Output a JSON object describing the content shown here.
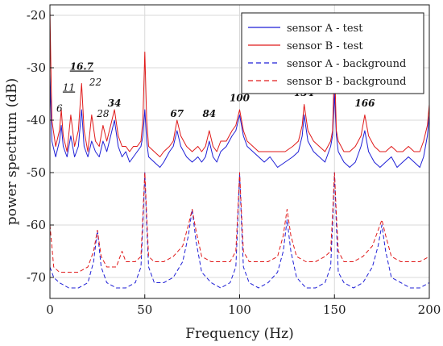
{
  "chart_data": {
    "type": "line",
    "title": "",
    "xlabel": "Frequency (Hz)",
    "ylabel": "power spectrum (dB)",
    "xlim": [
      0,
      200
    ],
    "ylim": [
      -74,
      -18
    ],
    "x_ticks": [
      0,
      50,
      100,
      150,
      200
    ],
    "y_ticks": [
      -70,
      -60,
      -50,
      -40,
      -30,
      -20
    ],
    "grid": true,
    "legend_position": "top-right",
    "series": [
      {
        "name": "sensor A - test",
        "color": "#1f1fd6",
        "dash": "solid",
        "x": [
          0,
          1,
          3,
          5,
          6,
          7,
          9,
          11,
          13,
          15,
          16.7,
          18,
          20,
          22,
          24,
          26,
          28,
          30,
          32,
          34,
          36,
          38,
          40,
          42,
          44,
          46,
          48,
          49,
          50,
          51,
          52,
          55,
          58,
          60,
          63,
          65,
          67,
          69,
          72,
          75,
          78,
          80,
          82,
          84,
          86,
          88,
          90,
          93,
          96,
          98,
          100,
          102,
          104,
          107,
          110,
          113,
          116,
          120,
          124,
          128,
          131,
          133,
          134,
          136,
          139,
          142,
          145,
          148,
          149,
          150,
          151,
          152,
          155,
          158,
          161,
          164,
          166,
          168,
          171,
          174,
          177,
          180,
          183,
          186,
          189,
          192,
          195,
          197,
          199,
          200
        ],
        "y": [
          -31,
          -44,
          -47,
          -44,
          -41,
          -45,
          -47,
          -43,
          -47,
          -45,
          -38,
          -45,
          -47,
          -44,
          -46,
          -47,
          -44,
          -46,
          -43,
          -40,
          -45,
          -47,
          -46,
          -48,
          -47,
          -46,
          -45,
          -43,
          -38,
          -44,
          -47,
          -48,
          -49,
          -48,
          -46,
          -45,
          -42,
          -45,
          -47,
          -48,
          -47,
          -48,
          -47,
          -44,
          -47,
          -48,
          -46,
          -45,
          -43,
          -42,
          -39,
          -43,
          -45,
          -46,
          -47,
          -48,
          -47,
          -49,
          -48,
          -47,
          -46,
          -43,
          -39,
          -44,
          -46,
          -47,
          -48,
          -45,
          -43,
          -35,
          -43,
          -46,
          -48,
          -49,
          -48,
          -45,
          -42,
          -46,
          -48,
          -49,
          -48,
          -47,
          -49,
          -48,
          -47,
          -48,
          -49,
          -47,
          -43,
          -39
        ]
      },
      {
        "name": "sensor B - test",
        "color": "#e01a1a",
        "dash": "solid",
        "x": [
          0,
          0.5,
          1,
          3,
          5,
          6,
          7,
          9,
          11,
          13,
          15,
          16.7,
          18,
          20,
          22,
          24,
          26,
          28,
          30,
          32,
          34,
          36,
          38,
          40,
          42,
          44,
          46,
          48,
          49,
          50,
          51,
          52,
          55,
          58,
          60,
          63,
          65,
          67,
          69,
          72,
          75,
          78,
          80,
          82,
          84,
          86,
          88,
          90,
          93,
          96,
          98,
          100,
          102,
          104,
          107,
          110,
          113,
          116,
          120,
          124,
          128,
          131,
          133,
          134,
          136,
          139,
          142,
          145,
          148,
          149,
          150,
          151,
          152,
          155,
          158,
          161,
          164,
          166,
          168,
          171,
          174,
          177,
          180,
          183,
          186,
          189,
          192,
          195,
          197,
          199,
          200
        ],
        "y": [
          -19,
          -30,
          -40,
          -45,
          -42,
          -38,
          -43,
          -46,
          -39,
          -45,
          -42,
          -33,
          -42,
          -46,
          -39,
          -44,
          -45,
          -41,
          -44,
          -41,
          -38,
          -43,
          -45,
          -45,
          -46,
          -45,
          -45,
          -44,
          -40,
          -27,
          -40,
          -45,
          -46,
          -47,
          -46,
          -45,
          -44,
          -40,
          -43,
          -45,
          -46,
          -45,
          -46,
          -45,
          -42,
          -45,
          -46,
          -44,
          -44,
          -42,
          -41,
          -38,
          -42,
          -44,
          -45,
          -46,
          -46,
          -46,
          -46,
          -46,
          -45,
          -44,
          -41,
          -37,
          -42,
          -44,
          -45,
          -46,
          -44,
          -42,
          -29,
          -42,
          -44,
          -46,
          -46,
          -45,
          -43,
          -39,
          -43,
          -45,
          -46,
          -46,
          -45,
          -46,
          -46,
          -45,
          -46,
          -46,
          -44,
          -41,
          -37
        ]
      },
      {
        "name": "sensor A - background",
        "color": "#1f1fd6",
        "dash": "dashed",
        "x": [
          0,
          2,
          5,
          10,
          15,
          20,
          23,
          25,
          27,
          30,
          35,
          40,
          45,
          48,
          49,
          50,
          51,
          52,
          55,
          60,
          65,
          70,
          73,
          75,
          77,
          80,
          85,
          90,
          95,
          98,
          99,
          100,
          101,
          102,
          105,
          110,
          115,
          120,
          123,
          125,
          127,
          130,
          135,
          140,
          145,
          148,
          149,
          150,
          151,
          152,
          155,
          160,
          165,
          170,
          173,
          175,
          177,
          180,
          185,
          190,
          195,
          200
        ],
        "y": [
          -68,
          -70,
          -71,
          -72,
          -72,
          -71,
          -67,
          -61,
          -68,
          -71,
          -72,
          -72,
          -71,
          -68,
          -60,
          -50,
          -60,
          -68,
          -71,
          -71,
          -70,
          -67,
          -62,
          -57,
          -63,
          -69,
          -71,
          -72,
          -71,
          -68,
          -60,
          -50,
          -60,
          -68,
          -71,
          -72,
          -71,
          -69,
          -65,
          -59,
          -65,
          -70,
          -72,
          -72,
          -71,
          -68,
          -60,
          -50,
          -60,
          -69,
          -71,
          -72,
          -71,
          -68,
          -64,
          -60,
          -65,
          -70,
          -71,
          -72,
          -72,
          -71
        ]
      },
      {
        "name": "sensor B - background",
        "color": "#e01a1a",
        "dash": "dashed",
        "x": [
          0,
          2,
          5,
          10,
          15,
          20,
          23,
          25,
          27,
          30,
          35,
          38,
          40,
          45,
          48,
          49,
          50,
          51,
          52,
          55,
          60,
          65,
          70,
          73,
          75,
          77,
          80,
          85,
          90,
          95,
          98,
          99,
          100,
          101,
          102,
          105,
          110,
          115,
          120,
          123,
          125,
          127,
          130,
          135,
          140,
          145,
          148,
          149,
          150,
          151,
          152,
          155,
          160,
          165,
          170,
          173,
          175,
          177,
          180,
          185,
          190,
          195,
          200
        ],
        "y": [
          -60,
          -68,
          -69,
          -69,
          -69,
          -68,
          -65,
          -61,
          -66,
          -68,
          -68,
          -65,
          -67,
          -67,
          -66,
          -58,
          -50,
          -58,
          -66,
          -67,
          -67,
          -66,
          -64,
          -60,
          -57,
          -61,
          -66,
          -67,
          -67,
          -67,
          -65,
          -58,
          -50,
          -58,
          -65,
          -67,
          -67,
          -67,
          -66,
          -62,
          -57,
          -62,
          -66,
          -67,
          -67,
          -66,
          -65,
          -58,
          -50,
          -58,
          -65,
          -67,
          -67,
          -66,
          -64,
          -61,
          -59,
          -62,
          -66,
          -67,
          -67,
          -67,
          -66
        ]
      }
    ],
    "annotations": [
      {
        "text": "6",
        "x": 5,
        "y": -39,
        "bold": false,
        "underline": false
      },
      {
        "text": "11",
        "x": 10,
        "y": -35,
        "bold": false,
        "underline": true
      },
      {
        "text": "16.7",
        "x": 16.7,
        "y": -31,
        "bold": true,
        "underline": true
      },
      {
        "text": "22",
        "x": 24,
        "y": -34,
        "bold": false,
        "underline": false
      },
      {
        "text": "28",
        "x": 28,
        "y": -40,
        "bold": false,
        "underline": false
      },
      {
        "text": "34",
        "x": 34,
        "y": -38,
        "bold": true,
        "underline": false
      },
      {
        "text": "67",
        "x": 67,
        "y": -40,
        "bold": true,
        "underline": false
      },
      {
        "text": "84",
        "x": 84,
        "y": -40,
        "bold": true,
        "underline": false
      },
      {
        "text": "100",
        "x": 100,
        "y": -37,
        "bold": true,
        "underline": false
      },
      {
        "text": "134",
        "x": 134,
        "y": -36,
        "bold": true,
        "underline": false
      },
      {
        "text": "166",
        "x": 166,
        "y": -38,
        "bold": true,
        "underline": false
      }
    ]
  }
}
